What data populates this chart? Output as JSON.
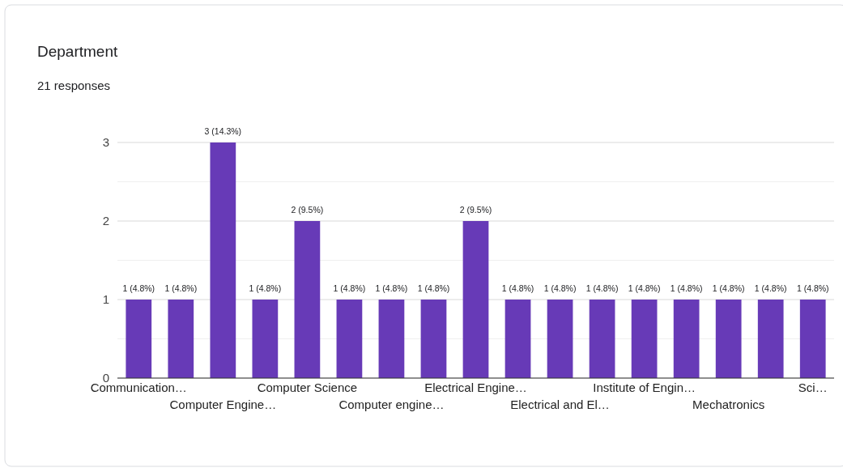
{
  "chart_data": {
    "type": "bar",
    "title": "Department",
    "subtitle": "21 responses",
    "categories": [
      "Communication…",
      null,
      "Computer Engine…",
      null,
      "Computer Science",
      null,
      "Computer engine…",
      null,
      "Electrical Engine…",
      null,
      "Electrical and El…",
      null,
      "Institute of Engin…",
      null,
      "Mechatronics",
      null,
      "Sci…"
    ],
    "values": [
      1,
      1,
      3,
      1,
      2,
      1,
      1,
      1,
      2,
      1,
      1,
      1,
      1,
      1,
      1,
      1,
      1
    ],
    "value_labels": [
      "1 (4.8%)",
      "1 (4.8%)",
      "3 (14.3%)",
      "1 (4.8%)",
      "2 (9.5%)",
      "1 (4.8%)",
      "1 (4.8%)",
      "1 (4.8%)",
      "2 (9.5%)",
      "1 (4.8%)",
      "1 (4.8%)",
      "1 (4.8%)",
      "1 (4.8%)",
      "1 (4.8%)",
      "1 (4.8%)",
      "1 (4.8%)",
      "1 (4.8%)"
    ],
    "color": "#673ab7",
    "ylim": [
      0,
      3
    ],
    "yticks": [
      0,
      {
        "value": 0.5,
        "label": null
      },
      1,
      {
        "value": 1.5,
        "label": null
      },
      2,
      {
        "value": 2.5,
        "label": null
      },
      3
    ],
    "grid": true
  }
}
